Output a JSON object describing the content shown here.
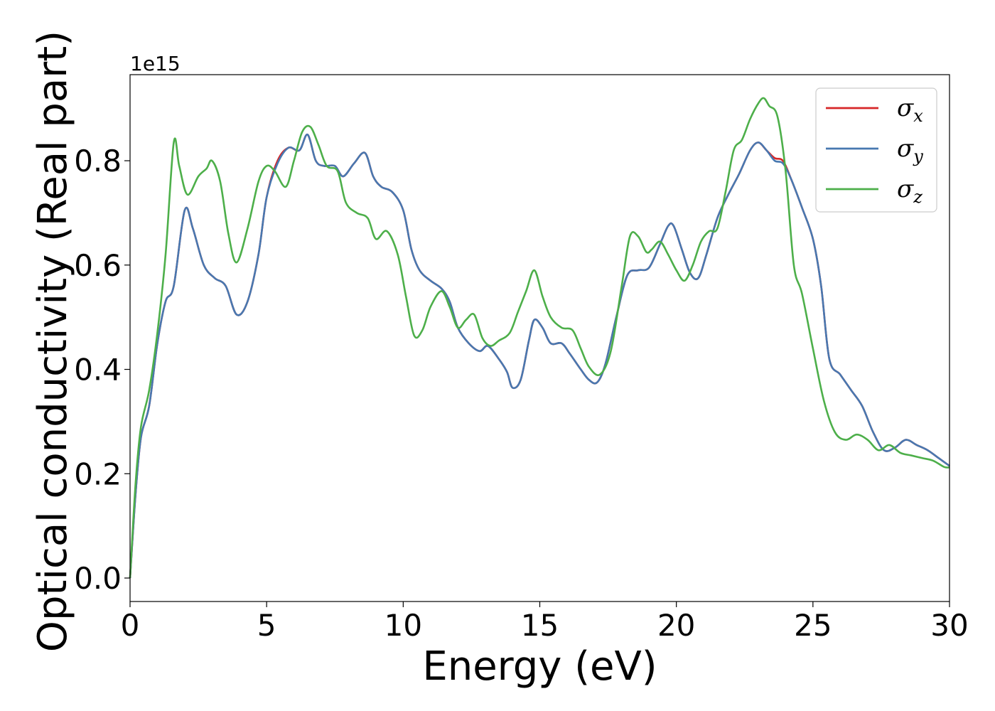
{
  "chart_data": {
    "type": "line",
    "xlabel": "Energy (eV)",
    "ylabel": "Optical conductivity (Real part)",
    "y_offset_text": "1e15",
    "xlim": [
      0,
      30
    ],
    "ylim": [
      -0.045,
      0.965
    ],
    "x_ticks": [
      0,
      5,
      10,
      15,
      20,
      25,
      30
    ],
    "y_ticks": [
      0.0,
      0.2,
      0.4,
      0.6,
      0.8
    ],
    "x_tick_labels": [
      "0",
      "5",
      "10",
      "15",
      "20",
      "25",
      "30"
    ],
    "y_tick_labels": [
      "0.0",
      "0.2",
      "0.4",
      "0.6",
      "0.8"
    ],
    "grid": false,
    "legend_position": "top-right",
    "series": [
      {
        "name": "σx",
        "symbol": "σ",
        "subscript": "x",
        "color": "#d62728",
        "x": [
          0,
          0.2,
          0.4,
          0.7,
          1.0,
          1.3,
          1.6,
          2.0,
          2.3,
          2.7,
          3.1,
          3.5,
          3.9,
          4.3,
          4.7,
          5.0,
          5.4,
          5.8,
          6.2,
          6.5,
          6.8,
          7.1,
          7.5,
          7.8,
          8.2,
          8.6,
          8.9,
          9.2,
          9.6,
          10.0,
          10.3,
          10.6,
          11.0,
          11.4,
          11.7,
          12.0,
          12.4,
          12.8,
          13.1,
          13.5,
          13.8,
          14.0,
          14.3,
          14.6,
          14.8,
          15.1,
          15.4,
          15.8,
          16.1,
          16.5,
          16.8,
          17.1,
          17.4,
          17.8,
          18.2,
          18.6,
          19.0,
          19.4,
          19.7,
          19.9,
          20.2,
          20.5,
          20.8,
          21.1,
          21.5,
          21.9,
          22.3,
          22.7,
          23.0,
          23.3,
          23.6,
          23.9,
          24.2,
          24.6,
          25.0,
          25.3,
          25.6,
          26.0,
          26.4,
          26.8,
          27.2,
          27.6,
          28.0,
          28.4,
          28.8,
          29.2,
          29.6,
          30.0
        ],
        "y": [
          0.0,
          0.16,
          0.27,
          0.33,
          0.45,
          0.53,
          0.56,
          0.705,
          0.67,
          0.6,
          0.575,
          0.56,
          0.505,
          0.53,
          0.62,
          0.73,
          0.8,
          0.825,
          0.82,
          0.85,
          0.8,
          0.79,
          0.79,
          0.77,
          0.795,
          0.815,
          0.77,
          0.75,
          0.74,
          0.705,
          0.63,
          0.59,
          0.57,
          0.555,
          0.53,
          0.48,
          0.45,
          0.435,
          0.445,
          0.42,
          0.395,
          0.365,
          0.38,
          0.455,
          0.495,
          0.48,
          0.45,
          0.45,
          0.43,
          0.4,
          0.38,
          0.375,
          0.41,
          0.5,
          0.58,
          0.59,
          0.595,
          0.64,
          0.675,
          0.675,
          0.63,
          0.585,
          0.575,
          0.62,
          0.69,
          0.735,
          0.775,
          0.82,
          0.835,
          0.82,
          0.805,
          0.8,
          0.765,
          0.71,
          0.65,
          0.56,
          0.42,
          0.39,
          0.36,
          0.33,
          0.28,
          0.245,
          0.25,
          0.265,
          0.255,
          0.245,
          0.23,
          0.215
        ]
      },
      {
        "name": "σy",
        "symbol": "σ",
        "subscript": "y",
        "color": "#4878b0",
        "x": [
          0,
          0.2,
          0.4,
          0.7,
          1.0,
          1.3,
          1.6,
          2.0,
          2.3,
          2.7,
          3.1,
          3.5,
          3.9,
          4.3,
          4.7,
          5.0,
          5.4,
          5.8,
          6.2,
          6.5,
          6.8,
          7.1,
          7.5,
          7.8,
          8.2,
          8.6,
          8.9,
          9.2,
          9.6,
          10.0,
          10.3,
          10.6,
          11.0,
          11.4,
          11.7,
          12.0,
          12.4,
          12.8,
          13.1,
          13.5,
          13.8,
          14.0,
          14.3,
          14.6,
          14.8,
          15.1,
          15.4,
          15.8,
          16.1,
          16.5,
          16.8,
          17.1,
          17.4,
          17.8,
          18.2,
          18.6,
          19.0,
          19.4,
          19.7,
          19.9,
          20.2,
          20.5,
          20.8,
          21.1,
          21.5,
          21.9,
          22.3,
          22.7,
          23.0,
          23.3,
          23.6,
          23.9,
          24.2,
          24.6,
          25.0,
          25.3,
          25.6,
          26.0,
          26.4,
          26.8,
          27.2,
          27.6,
          28.0,
          28.4,
          28.8,
          29.2,
          29.6,
          30.0
        ],
        "y": [
          0.0,
          0.16,
          0.27,
          0.33,
          0.45,
          0.53,
          0.56,
          0.705,
          0.67,
          0.6,
          0.575,
          0.56,
          0.505,
          0.53,
          0.62,
          0.73,
          0.795,
          0.825,
          0.82,
          0.85,
          0.8,
          0.79,
          0.79,
          0.77,
          0.795,
          0.815,
          0.77,
          0.75,
          0.74,
          0.705,
          0.63,
          0.59,
          0.57,
          0.555,
          0.53,
          0.48,
          0.45,
          0.435,
          0.445,
          0.42,
          0.395,
          0.365,
          0.38,
          0.455,
          0.495,
          0.48,
          0.45,
          0.45,
          0.43,
          0.4,
          0.38,
          0.375,
          0.41,
          0.5,
          0.58,
          0.59,
          0.595,
          0.64,
          0.675,
          0.675,
          0.63,
          0.585,
          0.575,
          0.62,
          0.69,
          0.735,
          0.775,
          0.82,
          0.835,
          0.82,
          0.8,
          0.795,
          0.765,
          0.71,
          0.65,
          0.56,
          0.42,
          0.39,
          0.36,
          0.33,
          0.28,
          0.245,
          0.25,
          0.265,
          0.255,
          0.245,
          0.23,
          0.215
        ]
      },
      {
        "name": "σz",
        "symbol": "σ",
        "subscript": "z",
        "color": "#4daf4a",
        "x": [
          0,
          0.2,
          0.4,
          0.7,
          1.0,
          1.3,
          1.6,
          1.8,
          2.1,
          2.5,
          2.8,
          3.0,
          3.3,
          3.6,
          3.9,
          4.3,
          4.7,
          5.0,
          5.3,
          5.7,
          6.0,
          6.3,
          6.6,
          6.9,
          7.2,
          7.6,
          7.9,
          8.3,
          8.7,
          9.0,
          9.4,
          9.8,
          10.1,
          10.4,
          10.7,
          11.0,
          11.4,
          11.7,
          12.0,
          12.3,
          12.6,
          12.9,
          13.2,
          13.5,
          13.9,
          14.2,
          14.5,
          14.8,
          15.1,
          15.4,
          15.8,
          16.2,
          16.5,
          16.8,
          17.2,
          17.6,
          18.0,
          18.3,
          18.6,
          18.9,
          19.1,
          19.4,
          19.7,
          20.0,
          20.3,
          20.6,
          20.9,
          21.2,
          21.5,
          21.8,
          22.1,
          22.4,
          22.7,
          23.0,
          23.2,
          23.4,
          23.7,
          24.0,
          24.3,
          24.6,
          25.0,
          25.4,
          25.8,
          26.2,
          26.6,
          27.0,
          27.4,
          27.8,
          28.2,
          28.6,
          29.0,
          29.4,
          29.8,
          30.0
        ],
        "y": [
          0.0,
          0.18,
          0.29,
          0.36,
          0.47,
          0.62,
          0.835,
          0.79,
          0.735,
          0.77,
          0.785,
          0.8,
          0.76,
          0.66,
          0.605,
          0.67,
          0.76,
          0.79,
          0.78,
          0.75,
          0.8,
          0.855,
          0.865,
          0.83,
          0.79,
          0.78,
          0.72,
          0.7,
          0.69,
          0.65,
          0.665,
          0.62,
          0.54,
          0.465,
          0.475,
          0.52,
          0.55,
          0.52,
          0.48,
          0.495,
          0.505,
          0.46,
          0.445,
          0.455,
          0.47,
          0.51,
          0.55,
          0.59,
          0.54,
          0.5,
          0.48,
          0.475,
          0.44,
          0.405,
          0.39,
          0.435,
          0.56,
          0.655,
          0.655,
          0.625,
          0.63,
          0.645,
          0.62,
          0.59,
          0.57,
          0.6,
          0.645,
          0.665,
          0.67,
          0.74,
          0.82,
          0.84,
          0.88,
          0.91,
          0.92,
          0.905,
          0.885,
          0.78,
          0.6,
          0.545,
          0.44,
          0.34,
          0.28,
          0.265,
          0.275,
          0.265,
          0.245,
          0.255,
          0.24,
          0.235,
          0.23,
          0.225,
          0.213,
          0.212
        ]
      }
    ]
  }
}
